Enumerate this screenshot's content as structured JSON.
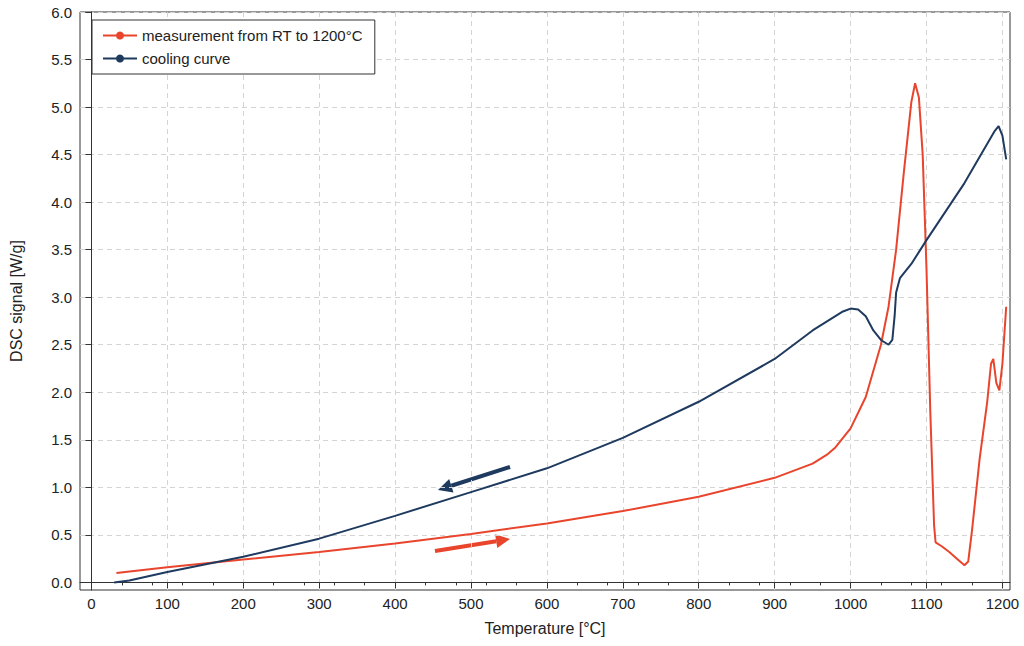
{
  "chart_data": {
    "type": "line",
    "x_label": "Temperature [°C]",
    "y_label": "DSC signal [W/g]",
    "xlim": [
      -15,
      1210
    ],
    "xticks": [
      0,
      100,
      200,
      300,
      400,
      500,
      600,
      700,
      800,
      900,
      1000,
      1100,
      1200
    ],
    "ylim": [
      -0.08,
      6.0
    ],
    "yticks": [
      {
        "value": 0,
        "label": "0.0"
      },
      0.5,
      {
        "value": 1,
        "label": "1.0"
      },
      1.5,
      {
        "value": 2,
        "label": "2.0"
      },
      2.5,
      {
        "value": 3,
        "label": "3.0"
      },
      3.5,
      {
        "value": 4,
        "label": "4.0"
      },
      4.5,
      {
        "value": 5,
        "label": "5.0"
      },
      5.5,
      {
        "value": 6,
        "label": "6.0"
      }
    ],
    "grid": true,
    "legend": "upper left",
    "series": [
      {
        "name": "measurement from RT to 1200°C",
        "color": "#e8452c",
        "x": [
          33,
          100,
          200,
          300,
          400,
          500,
          600,
          700,
          800,
          900,
          950,
          970,
          980,
          1000,
          1020,
          1040,
          1050,
          1060,
          1070,
          1080,
          1085,
          1090,
          1095,
          1100,
          1105,
          1110,
          1112,
          1120,
          1130,
          1140,
          1150,
          1155,
          1160,
          1170,
          1180,
          1185,
          1188,
          1192,
          1196,
          1200,
          1205
        ],
        "values": [
          0.1,
          0.16,
          0.24,
          0.32,
          0.41,
          0.51,
          0.62,
          0.75,
          0.9,
          1.1,
          1.25,
          1.35,
          1.42,
          1.62,
          1.95,
          2.5,
          2.9,
          3.5,
          4.3,
          5.05,
          5.25,
          5.1,
          4.5,
          3.3,
          1.8,
          0.6,
          0.42,
          0.38,
          0.32,
          0.25,
          0.18,
          0.22,
          0.55,
          1.3,
          1.9,
          2.3,
          2.35,
          2.1,
          2.02,
          2.3,
          2.9
        ]
      },
      {
        "name": "cooling curve",
        "color": "#1f3a5f",
        "x": [
          1205,
          1200,
          1195,
          1190,
          1150,
          1100,
          1080,
          1065,
          1060,
          1058,
          1055,
          1050,
          1040,
          1030,
          1020,
          1010,
          1000,
          990,
          950,
          900,
          800,
          700,
          600,
          500,
          400,
          300,
          200,
          100,
          50,
          30
        ],
        "values": [
          4.45,
          4.7,
          4.8,
          4.75,
          4.2,
          3.6,
          3.35,
          3.2,
          3.05,
          2.8,
          2.55,
          2.5,
          2.55,
          2.65,
          2.8,
          2.87,
          2.88,
          2.85,
          2.65,
          2.35,
          1.9,
          1.52,
          1.2,
          0.95,
          0.7,
          0.46,
          0.27,
          0.11,
          0.02,
          0.0
        ]
      }
    ]
  }
}
